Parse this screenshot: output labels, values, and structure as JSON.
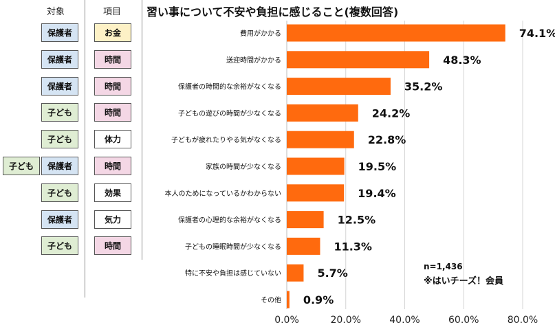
{
  "headers": {
    "target": "対象",
    "item": "項目"
  },
  "outer_tag": "子ども",
  "rows": [
    {
      "target": "保護者",
      "target_color": "blue",
      "item": "お金",
      "item_color": "yellow"
    },
    {
      "target": "保護者",
      "target_color": "blue",
      "item": "時間",
      "item_color": "pink"
    },
    {
      "target": "保護者",
      "target_color": "blue",
      "item": "時間",
      "item_color": "pink"
    },
    {
      "target": "子ども",
      "target_color": "green",
      "item": "時間",
      "item_color": "pink"
    },
    {
      "target": "子ども",
      "target_color": "green",
      "item": "体力",
      "item_color": "white"
    },
    {
      "target": "保護者",
      "target_color": "blue",
      "item": "時間",
      "item_color": "pink"
    },
    {
      "target": "子ども",
      "target_color": "green",
      "item": "効果",
      "item_color": "white"
    },
    {
      "target": "保護者",
      "target_color": "blue",
      "item": "気力",
      "item_color": "white"
    },
    {
      "target": "子ども",
      "target_color": "green",
      "item": "時間",
      "item_color": "pink"
    }
  ],
  "notes": {
    "n": "n=1,436",
    "source": "※はいチーズ！会員"
  },
  "chart_data": {
    "type": "bar",
    "orientation": "horizontal",
    "title": "習い事について不安や負担に感じること(複数回答)",
    "categories": [
      "費用がかかる",
      "送迎時間がかかる",
      "保護者の時間的な余裕がなくなる",
      "子どもの遊びの時間が少なくなる",
      "子どもが疲れたりやる気がなくなる",
      "家族の時間が少なくなる",
      "本人のためになっているかわからない",
      "保護者の心理的な余裕がなくなる",
      "子どもの睡眠時間が少なくなる",
      "特に不安や負担は感じていない",
      "その他"
    ],
    "values": [
      74.1,
      48.3,
      35.2,
      24.2,
      22.8,
      19.5,
      19.4,
      12.5,
      11.3,
      5.7,
      0.9
    ],
    "value_labels": [
      "74.1%",
      "48.3%",
      "35.2%",
      "24.2%",
      "22.8%",
      "19.5%",
      "19.4%",
      "12.5%",
      "11.3%",
      "5.7%",
      "0.9%"
    ],
    "xlim": [
      0,
      80
    ],
    "x_ticks": [
      0,
      20,
      40,
      60,
      80
    ],
    "x_tick_labels": [
      "0.0%",
      "20.0%",
      "40.0%",
      "60.0%",
      "80.0%"
    ],
    "bar_color": "#ff6a0e",
    "grid": true,
    "legend": "none"
  }
}
